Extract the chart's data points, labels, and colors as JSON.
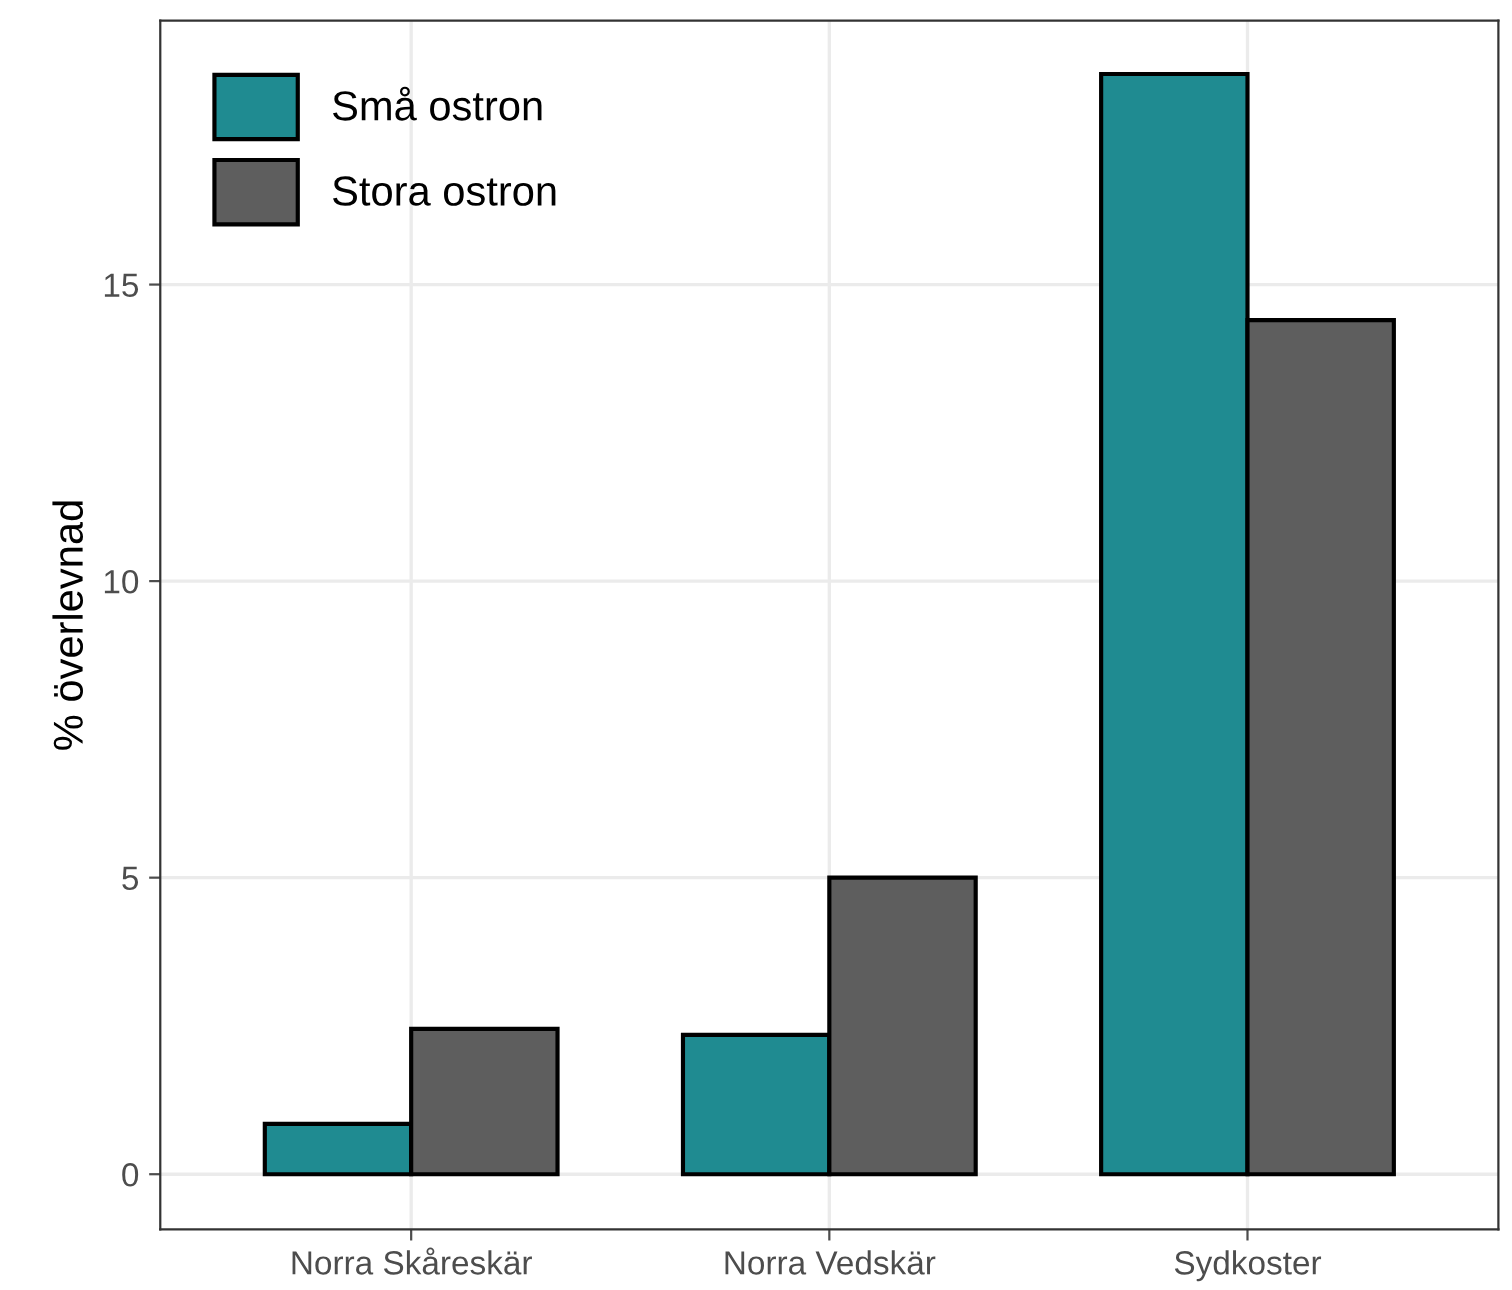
{
  "chart_data": {
    "type": "bar",
    "ylabel": "% överlevnad",
    "categories": [
      "Norra Skåreskär",
      "Norra Vedskär",
      "Sydkoster"
    ],
    "series": [
      {
        "name": "Små ostron",
        "color": "#1f8b91",
        "values": [
          0.85,
          2.35,
          18.55
        ]
      },
      {
        "name": "Stora ostron",
        "color": "#5e5e5e",
        "values": [
          2.45,
          5.0,
          14.4
        ]
      }
    ],
    "ylim": [
      -0.93,
      19.45
    ],
    "yticks": [
      0,
      5,
      10,
      15
    ],
    "grid": true,
    "legend": "top left"
  }
}
